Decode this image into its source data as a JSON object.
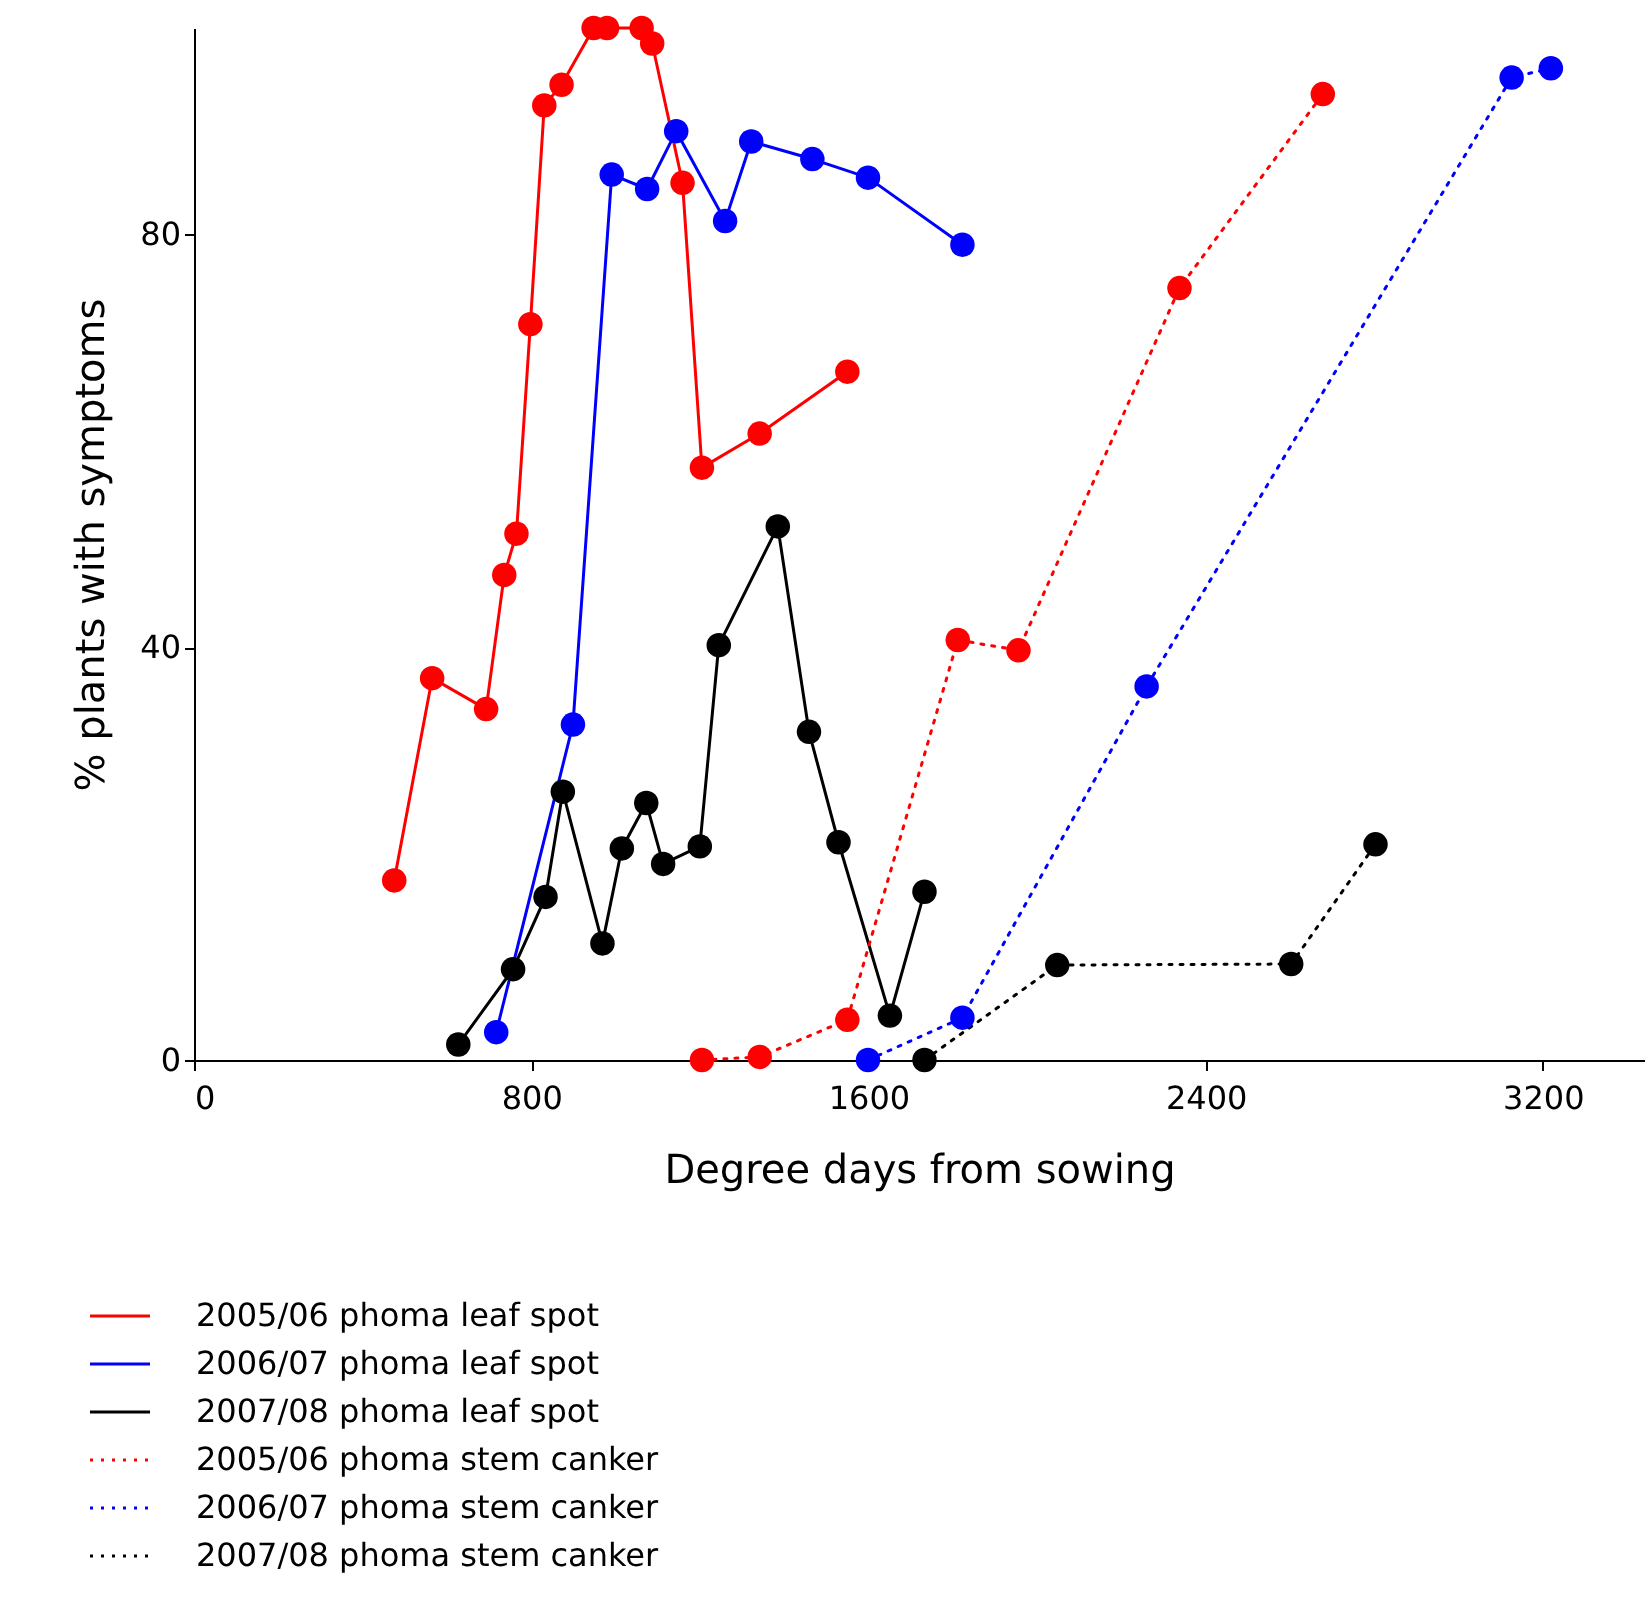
{
  "chart_data": {
    "type": "line",
    "xlabel": "Degree days from sowing",
    "ylabel": "% plants with symptoms",
    "xlim": [
      0,
      3440
    ],
    "xticks": [
      0,
      800,
      1600,
      2400,
      3200
    ],
    "ylim": [
      0,
      100
    ],
    "yticks": [
      0,
      40,
      80
    ],
    "grid": false,
    "legend": "bottom",
    "marker": "circle",
    "series": [
      {
        "name": "2005/06 phoma leaf spot",
        "color": "#ff0000",
        "line_style": "solid",
        "x": [
          475,
          565,
          693,
          736,
          765,
          798,
          831,
          872,
          948,
          980,
          1062,
          1087,
          1159,
          1205,
          1342,
          1550
        ],
        "values": [
          17.4,
          37,
          34,
          47,
          51,
          71.3,
          92.5,
          94.5,
          100,
          100,
          100,
          98.5,
          85,
          57.4,
          60.7,
          66.7
        ]
      },
      {
        "name": "2006/07 phoma leaf spot",
        "color": "#0000ff",
        "line_style": "solid",
        "x": [
          717,
          899,
          991,
          1075,
          1144,
          1260,
          1322,
          1467,
          1599,
          1823
        ],
        "values": [
          2.7,
          32.5,
          85.8,
          84.4,
          90,
          81.3,
          89,
          87.3,
          85.5,
          79
        ]
      },
      {
        "name": "2007/08 phoma leaf spot",
        "color": "#000000",
        "line_style": "solid",
        "x": [
          627,
          757,
          834,
          875,
          969,
          1015,
          1073,
          1113,
          1200,
          1245,
          1385,
          1459,
          1529,
          1651,
          1733
        ],
        "values": [
          1.5,
          8.8,
          15.8,
          26,
          11.3,
          20.5,
          24.9,
          19,
          20.7,
          40.2,
          51.7,
          31.8,
          21.1,
          4.3,
          16.3
        ]
      },
      {
        "name": "2005/06 phoma stem canker",
        "color": "#ff0000",
        "line_style": "dotted",
        "x": [
          1205,
          1342,
          1550,
          1812,
          1956,
          2338,
          2678
        ],
        "values": [
          0,
          0.3,
          3.9,
          40.7,
          39.7,
          74.8,
          93.6
        ]
      },
      {
        "name": "2006/07 phoma stem canker",
        "color": "#0000ff",
        "line_style": "dotted",
        "x": [
          1599,
          1823,
          2260,
          3126,
          3219
        ],
        "values": [
          0,
          4.1,
          36.2,
          95.2,
          96.1
        ]
      },
      {
        "name": "2007/08 phoma stem canker",
        "color": "#000000",
        "line_style": "dotted",
        "x": [
          1733,
          2048,
          2603,
          2803
        ],
        "values": [
          0,
          9.2,
          9.3,
          20.9
        ]
      }
    ]
  }
}
